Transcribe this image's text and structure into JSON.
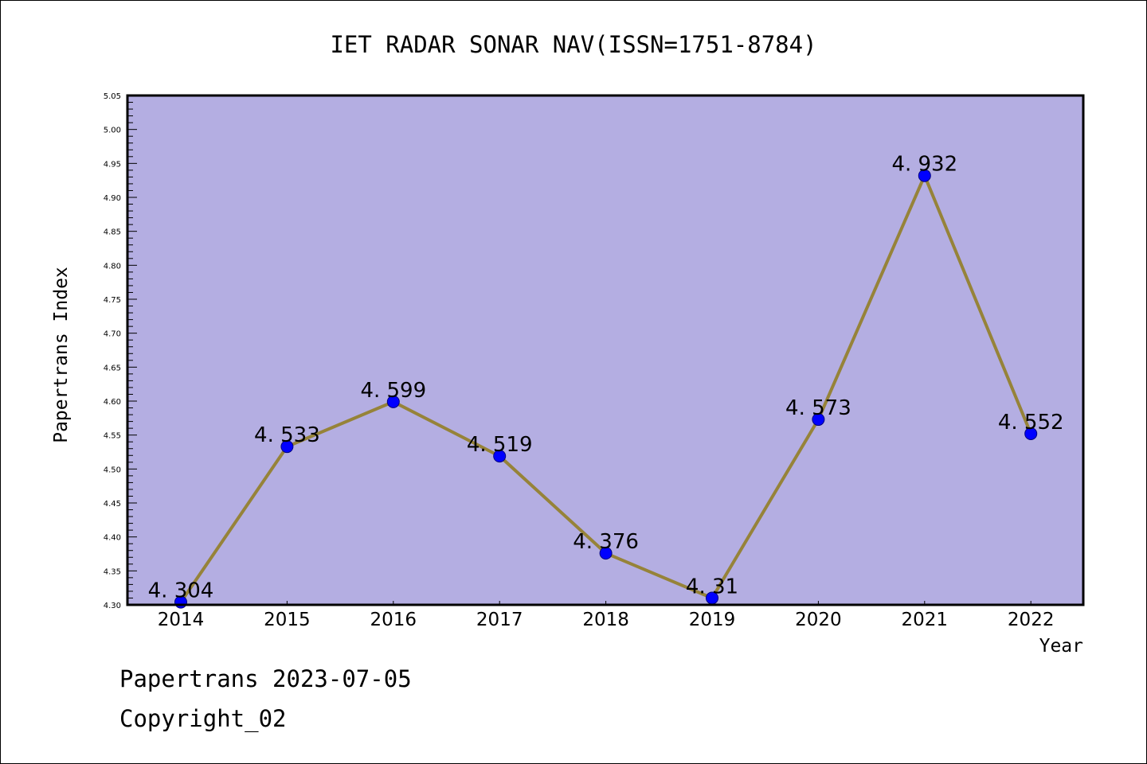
{
  "chart_data": {
    "type": "line",
    "title": "IET RADAR SONAR NAV(ISSN=1751-8784)",
    "xlabel": "Year",
    "ylabel": "Papertrans Index",
    "categories": [
      "2014",
      "2015",
      "2016",
      "2017",
      "2018",
      "2019",
      "2020",
      "2021",
      "2022"
    ],
    "series": [
      {
        "name": "Papertrans Index",
        "values": [
          4.304,
          4.533,
          4.599,
          4.519,
          4.376,
          4.31,
          4.573,
          4.932,
          4.552
        ],
        "data_labels": [
          "4. 304",
          "4. 533",
          "4. 599",
          "4. 519",
          "4. 376",
          "4. 31",
          "4. 573",
          "4. 932",
          "4. 552"
        ]
      }
    ],
    "ylim": [
      4.3,
      5.05
    ],
    "yticks": [
      "4.30",
      "4.35",
      "4.40",
      "4.45",
      "4.50",
      "4.55",
      "4.60",
      "4.65",
      "4.70",
      "4.75",
      "4.80",
      "4.85",
      "4.90",
      "4.95",
      "5.00",
      "5.05"
    ],
    "y_minor_step": 0.01,
    "grid": false,
    "colors": {
      "plot_background": "#b4aee2",
      "line": "#968339",
      "marker": "#0000ff",
      "marker_edge": "#000080"
    }
  },
  "footer": {
    "line1": "Papertrans 2023-07-05",
    "line2": "Copyright_02"
  }
}
